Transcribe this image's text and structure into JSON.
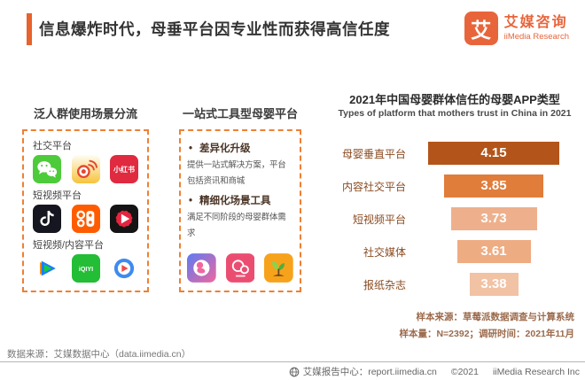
{
  "header": {
    "title": "信息爆炸时代，母垂平台因专业性而获得高信任度",
    "logo": {
      "glyph": "艾",
      "brand_cn": "艾媒咨询",
      "brand_en": "iiMedia Research"
    }
  },
  "left_panel": {
    "heading": "泛人群使用场景分流",
    "groups": [
      {
        "label": "社交平台"
      },
      {
        "label": "短视频平台"
      },
      {
        "label": "短视频/内容平台"
      }
    ]
  },
  "middle_panel": {
    "heading": "一站式工具型母婴平台",
    "bullets": [
      {
        "title": "差异化升级",
        "body": "提供一站式解决方案，平台包括资讯和商城"
      },
      {
        "title": "精细化场景工具",
        "body": "满足不同阶段的母婴群体需求"
      }
    ]
  },
  "icons": {
    "xiaohongshu_label": "小红书",
    "iqiyi_label": "iQIYI"
  },
  "chart_data": {
    "type": "bar",
    "orientation": "horizontal",
    "alignment": "center",
    "title": "2021年中国母婴群体信任的母婴APP类型",
    "subtitle": "Types of platform that mothers trust in China in 2021",
    "categories": [
      "母婴垂直平台",
      "内容社交平台",
      "短视频平台",
      "社交媒体",
      "报纸杂志"
    ],
    "values": [
      4.15,
      3.85,
      3.73,
      3.61,
      3.38
    ],
    "bar_colors": [
      "#B3551A",
      "#E07D3B",
      "#EEB08C",
      "#EEAC83",
      "#F2C2A4"
    ],
    "value_label_color": "#ffffff",
    "notes": [
      "样本来源：草莓派数据调查与计算系统",
      "样本量：N=2392；调研时间：2021年11月"
    ]
  },
  "footer": {
    "source": "数据来源：艾媒数据中心（data.iimedia.cn）",
    "report_center": "艾媒报告中心：report.iimedia.cn",
    "copyright": "©2021",
    "company": "iiMedia Research  Inc"
  }
}
